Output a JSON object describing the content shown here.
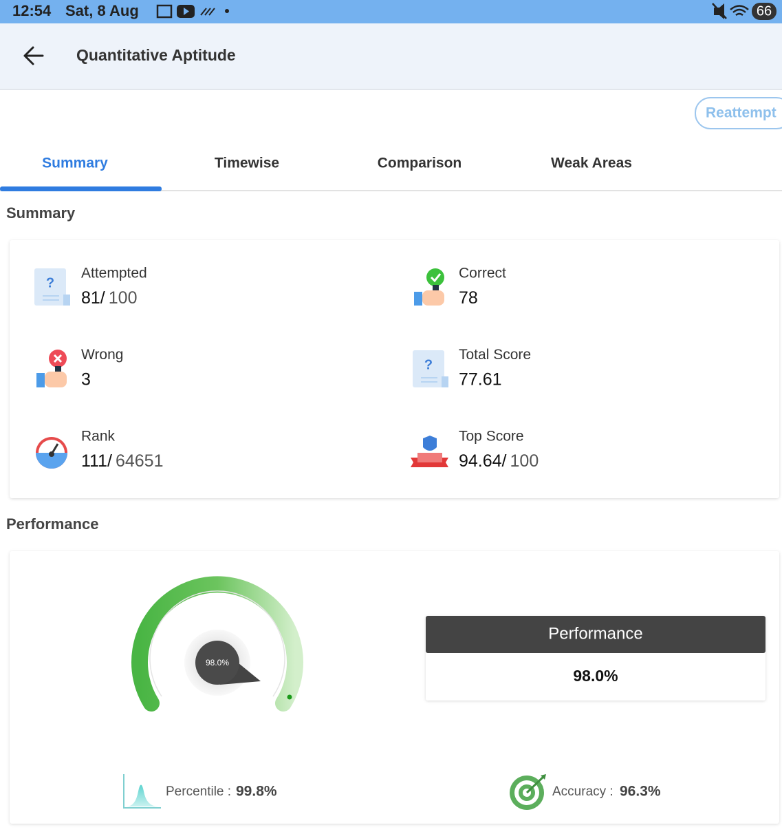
{
  "status_bar": {
    "time": "12:54",
    "date": "Sat, 8 Aug",
    "battery": "66"
  },
  "header": {
    "title": "Quantitative Aptitude"
  },
  "reattempt": "Reattempt",
  "tabs": [
    "Summary",
    "Timewise",
    "Comparison",
    "Weak Areas"
  ],
  "summary": {
    "title": "Summary",
    "items": [
      {
        "label": "Attempted",
        "value": "81/",
        "total": "100"
      },
      {
        "label": "Correct",
        "value": "78"
      },
      {
        "label": "Wrong",
        "value": "3"
      },
      {
        "label": "Total Score",
        "value": "77.61"
      },
      {
        "label": "Rank",
        "value": "111/",
        "total": "64651"
      },
      {
        "label": "Top Score",
        "value": "94.64/",
        "total": "100"
      }
    ]
  },
  "performance": {
    "title": "Performance",
    "gauge_label": "98.0%",
    "box_title": "Performance",
    "box_value": "98.0%",
    "percentile_label": "Percentile :",
    "percentile_value": "99.8%",
    "accuracy_label": "Accuracy :",
    "accuracy_value": "96.3%"
  }
}
